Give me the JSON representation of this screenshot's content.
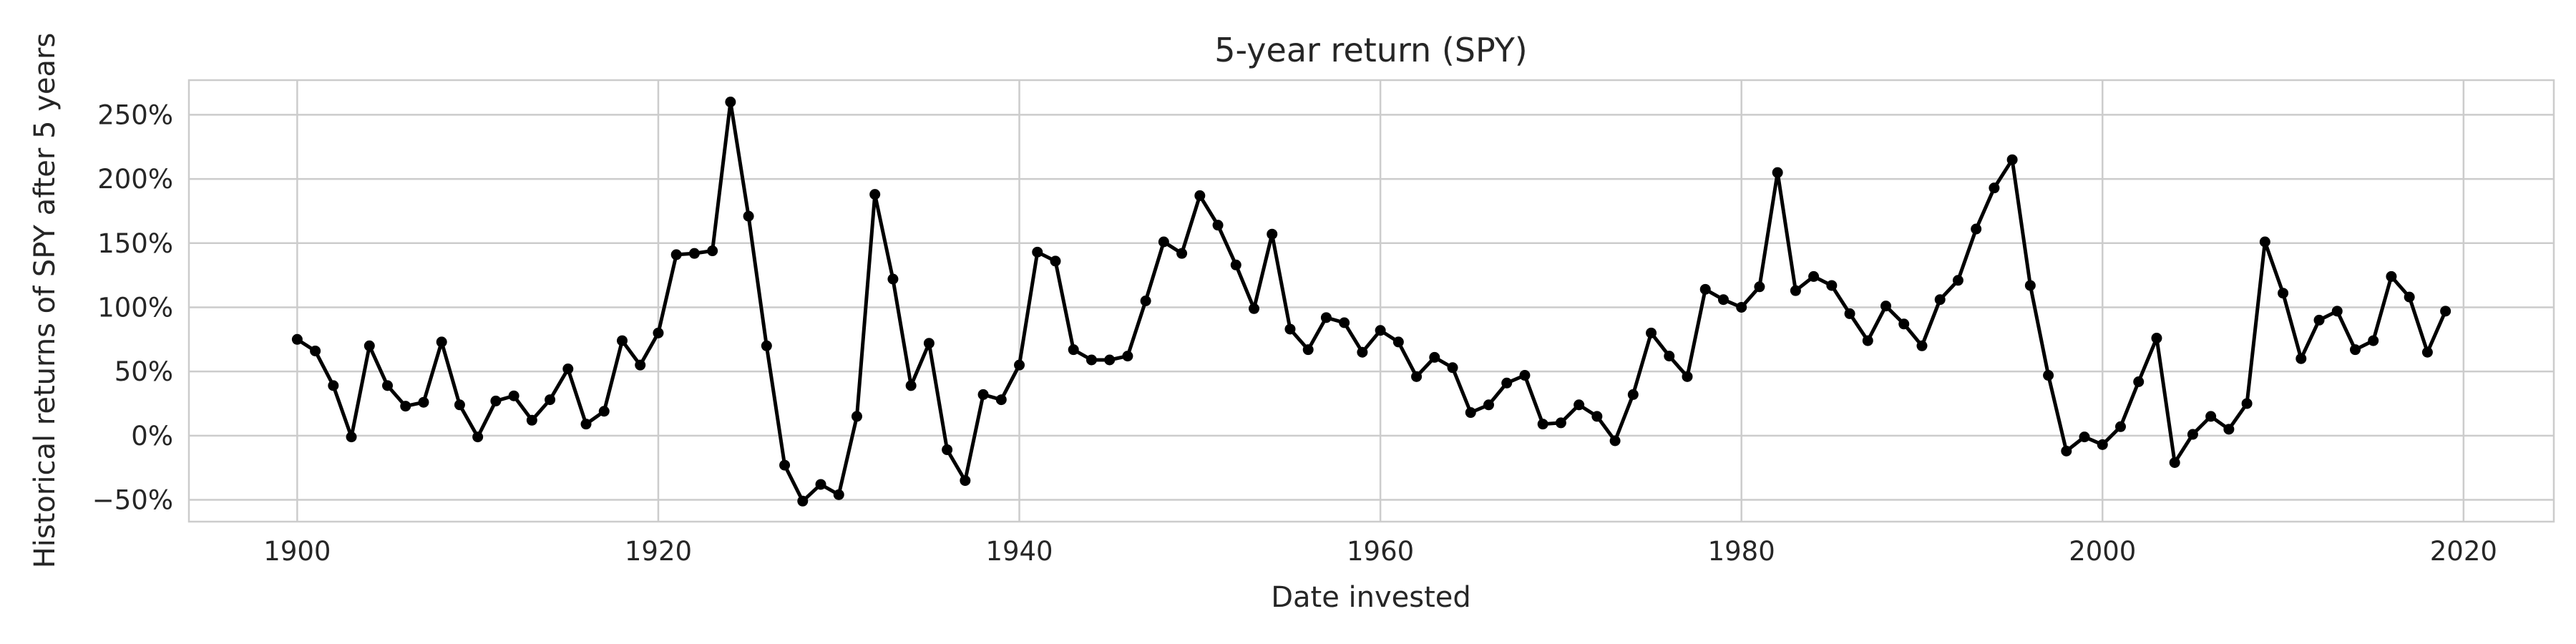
{
  "chart_data": {
    "type": "line",
    "title": "5-year return (SPY)",
    "xlabel": "Date invested",
    "ylabel": "Historical returns of SPY after 5 years",
    "xlim": [
      1894,
      2025
    ],
    "ylim": [
      -0.67,
      2.77
    ],
    "x_ticks": [
      1900,
      1920,
      1940,
      1960,
      1980,
      2000,
      2020
    ],
    "x_tick_labels": [
      "1900",
      "1920",
      "1940",
      "1960",
      "1980",
      "2000",
      "2020"
    ],
    "y_ticks": [
      -0.5,
      0,
      0.5,
      1.0,
      1.5,
      2.0,
      2.5
    ],
    "y_tick_labels": [
      "−50%",
      "0%",
      "50%",
      "100%",
      "150%",
      "200%",
      "250%"
    ],
    "grid": true,
    "line_color": "#000000",
    "marker": "dot",
    "series": [
      {
        "x": [
          1900,
          1901,
          1902,
          1903,
          1904,
          1905,
          1906,
          1907,
          1908,
          1909,
          1910,
          1911,
          1912,
          1913,
          1914,
          1915,
          1916,
          1917,
          1918,
          1919,
          1920,
          1921,
          1922,
          1923,
          1924,
          1925,
          1926,
          1927,
          1928,
          1929,
          1930,
          1931,
          1932,
          1933,
          1934,
          1935,
          1936,
          1937,
          1938,
          1939,
          1940,
          1941,
          1942,
          1943,
          1944,
          1945,
          1946,
          1947,
          1948,
          1949,
          1950,
          1951,
          1952,
          1953,
          1954,
          1955,
          1956,
          1957,
          1958,
          1959,
          1960,
          1961,
          1962,
          1963,
          1964,
          1965,
          1966,
          1967,
          1968,
          1969,
          1970,
          1971,
          1972,
          1973,
          1974,
          1975,
          1976,
          1977,
          1978,
          1979,
          1980,
          1981,
          1982,
          1983,
          1984,
          1985,
          1986,
          1987,
          1988,
          1989,
          1990,
          1991,
          1992,
          1993,
          1994,
          1995,
          1996,
          1997,
          1998,
          1999,
          2000,
          2001,
          2002,
          2003,
          2004,
          2005,
          2006,
          2007,
          2008,
          2009,
          2010,
          2011,
          2012,
          2013,
          2014,
          2015,
          2016,
          2017,
          2018,
          2019
        ],
        "y": [
          0.75,
          0.66,
          0.39,
          -0.01,
          0.7,
          0.39,
          0.23,
          0.26,
          0.73,
          0.24,
          -0.01,
          0.27,
          0.31,
          0.12,
          0.28,
          0.52,
          0.09,
          0.19,
          0.74,
          0.55,
          0.8,
          1.41,
          1.42,
          1.44,
          2.6,
          1.71,
          0.7,
          -0.23,
          -0.51,
          -0.38,
          -0.46,
          0.15,
          1.88,
          1.22,
          0.39,
          0.72,
          -0.11,
          -0.35,
          0.32,
          0.28,
          0.55,
          1.43,
          1.36,
          0.67,
          0.59,
          0.59,
          0.62,
          1.05,
          1.51,
          1.42,
          1.87,
          1.64,
          1.33,
          0.99,
          1.57,
          0.83,
          0.67,
          0.92,
          0.88,
          0.65,
          0.82,
          0.73,
          0.46,
          0.61,
          0.53,
          0.18,
          0.24,
          0.41,
          0.47,
          0.09,
          0.1,
          0.24,
          0.15,
          -0.04,
          0.32,
          0.8,
          0.62,
          0.46,
          1.14,
          1.06,
          1.0,
          1.16,
          2.05,
          1.13,
          1.24,
          1.17,
          0.95,
          0.74,
          1.01,
          0.87,
          0.7,
          1.06,
          1.21,
          1.61,
          1.93,
          2.15,
          1.17,
          0.47,
          -0.12,
          -0.01,
          -0.07,
          0.07,
          0.42,
          0.76,
          -0.21,
          0.01,
          0.15,
          0.05,
          0.25,
          1.51,
          1.11,
          0.6,
          0.9,
          0.97,
          0.67,
          0.74,
          1.24,
          1.08,
          0.65,
          0.97
        ]
      }
    ]
  }
}
